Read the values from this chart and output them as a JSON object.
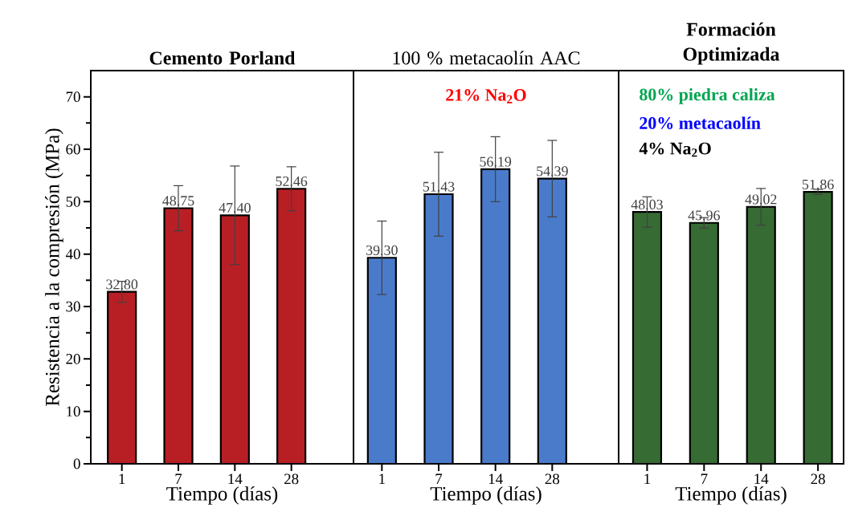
{
  "chart_data": [
    {
      "type": "bar",
      "title": "Cemento Porland",
      "xlabel": "Tiempo (días)",
      "ylabel": "Resistencia a la compresión  (MPa)",
      "categories": [
        "1",
        "7",
        "14",
        "28"
      ],
      "values": [
        32.8,
        48.75,
        47.4,
        52.46
      ],
      "value_labels": [
        "32.80",
        "48.75",
        "47.40",
        "52.46"
      ],
      "errors": [
        2.0,
        4.3,
        9.4,
        4.2
      ],
      "color": "#b81f25",
      "ylim": [
        0,
        75
      ],
      "yticks": [
        0,
        10,
        20,
        30,
        40,
        50,
        60,
        70
      ]
    },
    {
      "type": "bar",
      "title": "100 % metacaolín AAC",
      "xlabel": "Tiempo (días)",
      "categories": [
        "1",
        "7",
        "14",
        "28"
      ],
      "values": [
        39.3,
        51.43,
        56.19,
        54.39
      ],
      "value_labels": [
        "39.30",
        "51.43",
        "56.19",
        "54.39"
      ],
      "errors": [
        7.0,
        8.0,
        6.2,
        7.3
      ],
      "color": "#4a7bcb",
      "ylim": [
        0,
        75
      ],
      "tick_labels": "x",
      "annotations": [
        "**21%   Na$_{2}$O**"
      ]
    },
    {
      "type": "bar",
      "title": "Formación Optimizada",
      "xlabel": "Tiempo (días)",
      "categories": [
        "1",
        "7",
        "14",
        "28"
      ],
      "values": [
        48.03,
        45.96,
        49.02,
        51.86
      ],
      "value_labels": [
        "48.03",
        "45.96",
        "49.02",
        "51.86"
      ],
      "errors": [
        2.9,
        1.0,
        3.5,
        0.5
      ],
      "color": "#376b34",
      "ylim": [
        0,
        75
      ],
      "tick_labels": "x",
      "annotations": [
        "**80% piedra caliza**",
        "**20% metacaolín**",
        "**4%   Na$_{2}$O**"
      ]
    }
  ]
}
